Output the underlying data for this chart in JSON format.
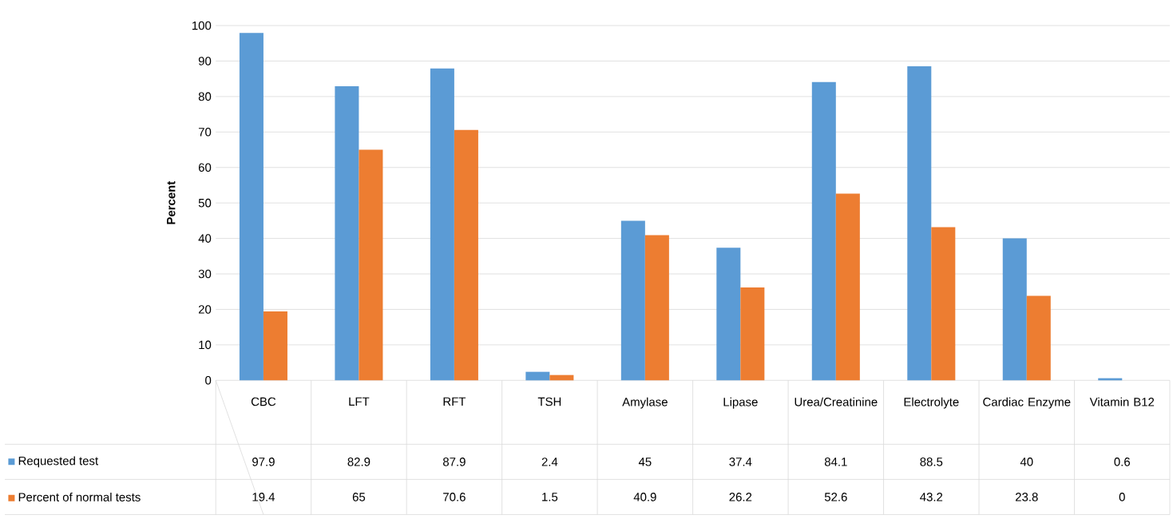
{
  "chart_data": {
    "type": "bar",
    "ylabel": "Percent",
    "categories": [
      "CBC",
      "LFT",
      "RFT",
      "TSH",
      "Amylase",
      "Lipase",
      "Urea/Creatinine",
      "Electrolyte",
      "Cardiac Enzyme",
      "Vitamin B12"
    ],
    "series": [
      {
        "name": "Requested test",
        "color": "#5b9bd5",
        "values": [
          97.9,
          82.9,
          87.9,
          2.4,
          45,
          37.4,
          84.1,
          88.5,
          40,
          0.6
        ]
      },
      {
        "name": "Percent of normal tests",
        "color": "#ed7d31",
        "values": [
          19.4,
          65,
          70.6,
          1.5,
          40.9,
          26.2,
          52.6,
          43.2,
          23.8,
          0
        ]
      }
    ],
    "ylim": [
      0,
      100
    ],
    "yticks": [
      0,
      10,
      20,
      30,
      40,
      50,
      60,
      70,
      80,
      90,
      100
    ],
    "grid": "y",
    "legend": "bottom",
    "data_labels": true
  }
}
